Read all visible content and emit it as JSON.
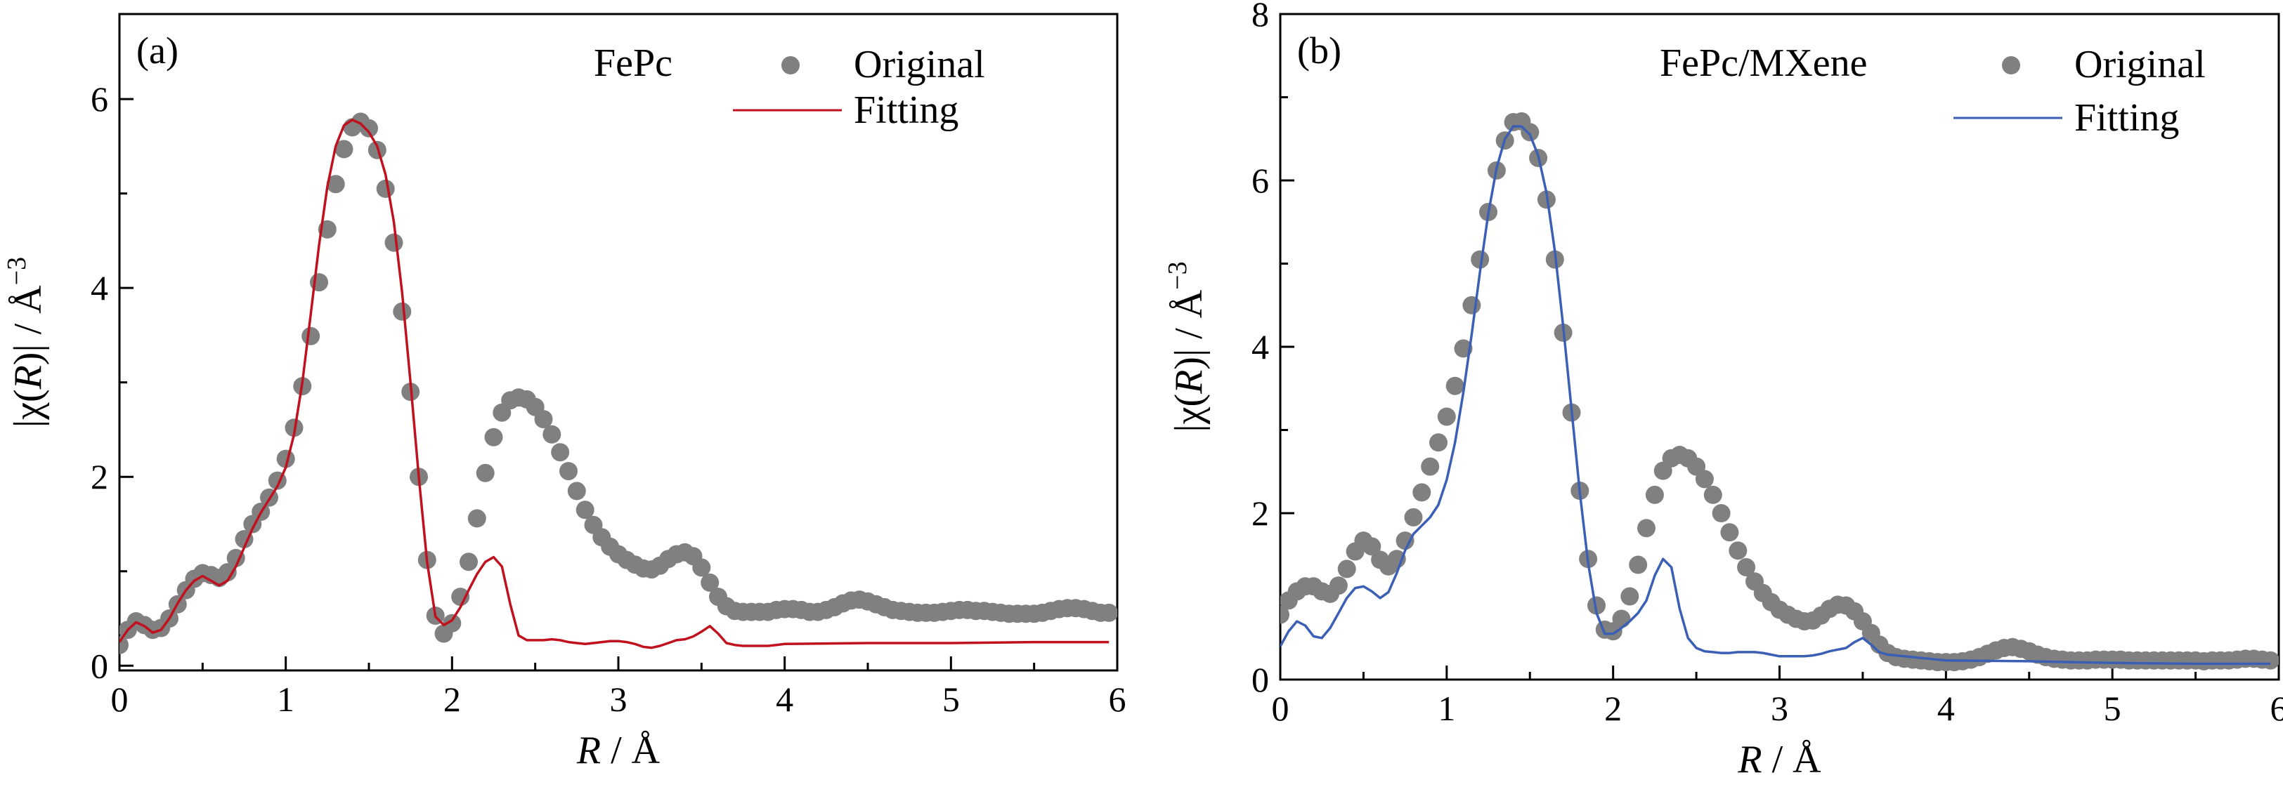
{
  "chart_data": [
    {
      "type": "scatter+line",
      "panel_label": "(a)",
      "sample_label": "FePc",
      "xlabel": {
        "italic": "R",
        "rest": " / Å"
      },
      "ylabel": {
        "pre": "|χ(",
        "italic": "R",
        "post": ")| / Å",
        "sup": "−3"
      },
      "xlim": [
        0,
        6
      ],
      "ylim": [
        -0.05,
        6.9
      ],
      "x_ticks": [
        "0",
        "1",
        "2",
        "3",
        "4",
        "5",
        "6"
      ],
      "y_ticks": [
        "0",
        "2",
        "4",
        "6"
      ],
      "y_tick_values": [
        0,
        2,
        4,
        6
      ],
      "legend_position": "top-right",
      "legend": [
        "Original",
        "Fitting"
      ],
      "fit_color": "#c0111f",
      "marker_color": "#808080",
      "original": {
        "name": "Original",
        "x": [
          0.0,
          0.05,
          0.1,
          0.15,
          0.2,
          0.25,
          0.3,
          0.35,
          0.4,
          0.45,
          0.5,
          0.55,
          0.6,
          0.65,
          0.7,
          0.75,
          0.8,
          0.85,
          0.9,
          0.95,
          1.0,
          1.05,
          1.1,
          1.15,
          1.2,
          1.25,
          1.3,
          1.35,
          1.4,
          1.45,
          1.5,
          1.55,
          1.6,
          1.65,
          1.7,
          1.75,
          1.8,
          1.85,
          1.9,
          1.95,
          2.0,
          2.05,
          2.1,
          2.15,
          2.2,
          2.25,
          2.3,
          2.35,
          2.4,
          2.45,
          2.5,
          2.55,
          2.6,
          2.65,
          2.7,
          2.75,
          2.8,
          2.85,
          2.9,
          2.95,
          3.0,
          3.05,
          3.1,
          3.15,
          3.2,
          3.25,
          3.3,
          3.35,
          3.4,
          3.45,
          3.5,
          3.55,
          3.6,
          3.65,
          3.7,
          3.75,
          3.8,
          3.85,
          3.9,
          3.95,
          4.0,
          4.05,
          4.1,
          4.15,
          4.2,
          4.25,
          4.3,
          4.35,
          4.4,
          4.45,
          4.5,
          4.55,
          4.6,
          4.65,
          4.7,
          4.75,
          4.8,
          4.85,
          4.9,
          4.95,
          5.0,
          5.05,
          5.1,
          5.15,
          5.2,
          5.25,
          5.3,
          5.35,
          5.4,
          5.45,
          5.5,
          5.55,
          5.6,
          5.65,
          5.7,
          5.75,
          5.8,
          5.85,
          5.9,
          5.95
        ],
        "y": [
          0.22,
          0.38,
          0.47,
          0.43,
          0.38,
          0.4,
          0.5,
          0.65,
          0.8,
          0.92,
          0.98,
          0.96,
          0.93,
          0.99,
          1.14,
          1.34,
          1.5,
          1.63,
          1.78,
          1.96,
          2.19,
          2.52,
          2.96,
          3.49,
          4.06,
          4.62,
          5.1,
          5.47,
          5.7,
          5.76,
          5.69,
          5.46,
          5.05,
          4.48,
          3.75,
          2.9,
          2.0,
          1.12,
          0.53,
          0.34,
          0.45,
          0.73,
          1.1,
          1.56,
          2.04,
          2.42,
          2.68,
          2.81,
          2.84,
          2.82,
          2.74,
          2.61,
          2.45,
          2.26,
          2.06,
          1.85,
          1.65,
          1.49,
          1.36,
          1.26,
          1.18,
          1.12,
          1.07,
          1.03,
          1.02,
          1.06,
          1.13,
          1.18,
          1.2,
          1.16,
          1.04,
          0.88,
          0.73,
          0.63,
          0.58,
          0.57,
          0.57,
          0.57,
          0.57,
          0.59,
          0.6,
          0.6,
          0.59,
          0.57,
          0.57,
          0.59,
          0.62,
          0.66,
          0.69,
          0.7,
          0.68,
          0.65,
          0.62,
          0.59,
          0.58,
          0.57,
          0.56,
          0.56,
          0.56,
          0.57,
          0.58,
          0.59,
          0.59,
          0.58,
          0.58,
          0.57,
          0.56,
          0.55,
          0.55,
          0.55,
          0.55,
          0.56,
          0.58,
          0.6,
          0.61,
          0.61,
          0.6,
          0.58,
          0.56,
          0.56
        ]
      },
      "fitting": {
        "name": "Fitting",
        "x": [
          0.0,
          0.05,
          0.1,
          0.15,
          0.2,
          0.25,
          0.3,
          0.35,
          0.4,
          0.45,
          0.5,
          0.55,
          0.6,
          0.65,
          0.7,
          0.75,
          0.8,
          0.85,
          0.9,
          0.95,
          1.0,
          1.05,
          1.1,
          1.15,
          1.2,
          1.25,
          1.3,
          1.35,
          1.4,
          1.45,
          1.5,
          1.55,
          1.6,
          1.65,
          1.7,
          1.75,
          1.8,
          1.85,
          1.9,
          1.95,
          2.0,
          2.05,
          2.1,
          2.15,
          2.2,
          2.25,
          2.3,
          2.35,
          2.4,
          2.45,
          2.5,
          2.55,
          2.6,
          2.65,
          2.7,
          2.75,
          2.8,
          2.85,
          2.9,
          2.95,
          3.0,
          3.05,
          3.1,
          3.15,
          3.2,
          3.25,
          3.3,
          3.35,
          3.4,
          3.45,
          3.5,
          3.55,
          3.6,
          3.65,
          3.7,
          3.75,
          3.8,
          3.85,
          3.9,
          3.95,
          4.0,
          4.5,
          5.0,
          5.5,
          5.95
        ],
        "y": [
          0.25,
          0.38,
          0.46,
          0.42,
          0.35,
          0.38,
          0.5,
          0.66,
          0.8,
          0.9,
          0.95,
          0.9,
          0.85,
          0.9,
          1.05,
          1.25,
          1.45,
          1.62,
          1.76,
          1.9,
          2.1,
          2.45,
          3.0,
          3.72,
          4.45,
          5.07,
          5.5,
          5.72,
          5.78,
          5.74,
          5.65,
          5.5,
          5.2,
          4.7,
          3.95,
          3.0,
          2.0,
          1.1,
          0.52,
          0.43,
          0.48,
          0.62,
          0.8,
          0.97,
          1.1,
          1.15,
          1.05,
          0.65,
          0.32,
          0.27,
          0.27,
          0.27,
          0.28,
          0.27,
          0.25,
          0.24,
          0.23,
          0.24,
          0.25,
          0.26,
          0.26,
          0.25,
          0.23,
          0.2,
          0.19,
          0.21,
          0.24,
          0.27,
          0.28,
          0.31,
          0.36,
          0.42,
          0.34,
          0.24,
          0.22,
          0.21,
          0.21,
          0.21,
          0.21,
          0.22,
          0.23,
          0.24,
          0.24,
          0.25,
          0.25
        ]
      }
    },
    {
      "type": "scatter+line",
      "panel_label": "(b)",
      "sample_label": "FePc/MXene",
      "xlabel": {
        "italic": "R",
        "rest": " / Å"
      },
      "ylabel": {
        "pre": "|χ(",
        "italic": "R",
        "post": ")| / Å",
        "sup": "−3"
      },
      "xlim": [
        0,
        6
      ],
      "ylim": [
        0,
        8
      ],
      "x_ticks": [
        "0",
        "1",
        "2",
        "3",
        "4",
        "5",
        "6"
      ],
      "y_ticks": [
        "0",
        "2",
        "4",
        "6",
        "8"
      ],
      "y_tick_values": [
        0,
        2,
        4,
        6,
        8
      ],
      "legend_position": "top-right",
      "legend": [
        "Original",
        "Fitting"
      ],
      "fit_color": "#3a5fb4",
      "marker_color": "#808080",
      "original": {
        "name": "Original",
        "x": [
          0.0,
          0.05,
          0.1,
          0.15,
          0.2,
          0.25,
          0.3,
          0.35,
          0.4,
          0.45,
          0.5,
          0.55,
          0.6,
          0.65,
          0.7,
          0.75,
          0.8,
          0.85,
          0.9,
          0.95,
          1.0,
          1.05,
          1.1,
          1.15,
          1.2,
          1.25,
          1.3,
          1.35,
          1.4,
          1.45,
          1.5,
          1.55,
          1.6,
          1.65,
          1.7,
          1.75,
          1.8,
          1.85,
          1.9,
          1.95,
          2.0,
          2.05,
          2.1,
          2.15,
          2.2,
          2.25,
          2.3,
          2.35,
          2.4,
          2.45,
          2.5,
          2.55,
          2.6,
          2.65,
          2.7,
          2.75,
          2.8,
          2.85,
          2.9,
          2.95,
          3.0,
          3.05,
          3.1,
          3.15,
          3.2,
          3.25,
          3.3,
          3.35,
          3.4,
          3.45,
          3.5,
          3.55,
          3.6,
          3.65,
          3.7,
          3.75,
          3.8,
          3.85,
          3.9,
          3.95,
          4.0,
          4.05,
          4.1,
          4.15,
          4.2,
          4.25,
          4.3,
          4.35,
          4.4,
          4.45,
          4.5,
          4.55,
          4.6,
          4.65,
          4.7,
          4.75,
          4.8,
          4.85,
          4.9,
          4.95,
          5.0,
          5.05,
          5.1,
          5.15,
          5.2,
          5.25,
          5.3,
          5.35,
          5.4,
          5.45,
          5.5,
          5.55,
          5.6,
          5.65,
          5.7,
          5.75,
          5.8,
          5.85,
          5.9,
          5.95
        ],
        "y": [
          0.78,
          0.95,
          1.06,
          1.12,
          1.12,
          1.06,
          1.03,
          1.13,
          1.33,
          1.54,
          1.67,
          1.6,
          1.44,
          1.36,
          1.45,
          1.67,
          1.95,
          2.25,
          2.56,
          2.85,
          3.16,
          3.53,
          3.98,
          4.5,
          5.05,
          5.62,
          6.12,
          6.48,
          6.7,
          6.71,
          6.58,
          6.27,
          5.77,
          5.05,
          4.17,
          3.21,
          2.27,
          1.45,
          0.89,
          0.6,
          0.58,
          0.73,
          1.0,
          1.38,
          1.82,
          2.22,
          2.51,
          2.66,
          2.7,
          2.66,
          2.56,
          2.41,
          2.22,
          2.0,
          1.77,
          1.55,
          1.35,
          1.18,
          1.04,
          0.93,
          0.84,
          0.78,
          0.73,
          0.7,
          0.71,
          0.77,
          0.85,
          0.9,
          0.89,
          0.82,
          0.7,
          0.56,
          0.42,
          0.32,
          0.27,
          0.25,
          0.24,
          0.23,
          0.22,
          0.21,
          0.21,
          0.21,
          0.22,
          0.24,
          0.27,
          0.31,
          0.35,
          0.38,
          0.39,
          0.37,
          0.34,
          0.3,
          0.27,
          0.25,
          0.24,
          0.23,
          0.23,
          0.23,
          0.24,
          0.24,
          0.24,
          0.24,
          0.23,
          0.23,
          0.23,
          0.23,
          0.23,
          0.23,
          0.23,
          0.23,
          0.23,
          0.22,
          0.23,
          0.23,
          0.23,
          0.24,
          0.25,
          0.25,
          0.24,
          0.23
        ]
      },
      "fitting": {
        "name": "Fitting",
        "x": [
          0.0,
          0.05,
          0.1,
          0.15,
          0.2,
          0.25,
          0.3,
          0.35,
          0.4,
          0.45,
          0.5,
          0.55,
          0.6,
          0.65,
          0.7,
          0.75,
          0.8,
          0.85,
          0.9,
          0.95,
          1.0,
          1.05,
          1.1,
          1.15,
          1.2,
          1.25,
          1.3,
          1.35,
          1.4,
          1.45,
          1.5,
          1.55,
          1.6,
          1.65,
          1.7,
          1.75,
          1.8,
          1.85,
          1.9,
          1.95,
          2.0,
          2.05,
          2.1,
          2.15,
          2.2,
          2.25,
          2.3,
          2.35,
          2.4,
          2.45,
          2.5,
          2.55,
          2.6,
          2.65,
          2.7,
          2.75,
          2.8,
          2.85,
          2.9,
          2.95,
          3.0,
          3.05,
          3.1,
          3.15,
          3.2,
          3.25,
          3.3,
          3.35,
          3.4,
          3.45,
          3.5,
          3.55,
          3.6,
          3.65,
          3.7,
          3.75,
          3.8,
          3.85,
          3.9,
          3.95,
          4.0,
          4.5,
          5.0,
          5.5,
          5.95
        ],
        "y": [
          0.4,
          0.58,
          0.7,
          0.65,
          0.52,
          0.5,
          0.62,
          0.8,
          0.98,
          1.1,
          1.12,
          1.06,
          0.98,
          1.05,
          1.28,
          1.55,
          1.75,
          1.85,
          1.95,
          2.1,
          2.4,
          2.85,
          3.45,
          4.15,
          4.9,
          5.6,
          6.15,
          6.5,
          6.65,
          6.65,
          6.55,
          6.3,
          5.85,
          5.15,
          4.25,
          3.25,
          2.25,
          1.4,
          0.8,
          0.55,
          0.55,
          0.62,
          0.7,
          0.8,
          0.95,
          1.25,
          1.45,
          1.35,
          0.85,
          0.5,
          0.38,
          0.34,
          0.33,
          0.32,
          0.32,
          0.33,
          0.33,
          0.33,
          0.32,
          0.3,
          0.28,
          0.28,
          0.28,
          0.28,
          0.29,
          0.31,
          0.34,
          0.36,
          0.38,
          0.45,
          0.5,
          0.42,
          0.33,
          0.3,
          0.29,
          0.28,
          0.27,
          0.26,
          0.25,
          0.24,
          0.23,
          0.22,
          0.2,
          0.19,
          0.19
        ]
      }
    }
  ]
}
